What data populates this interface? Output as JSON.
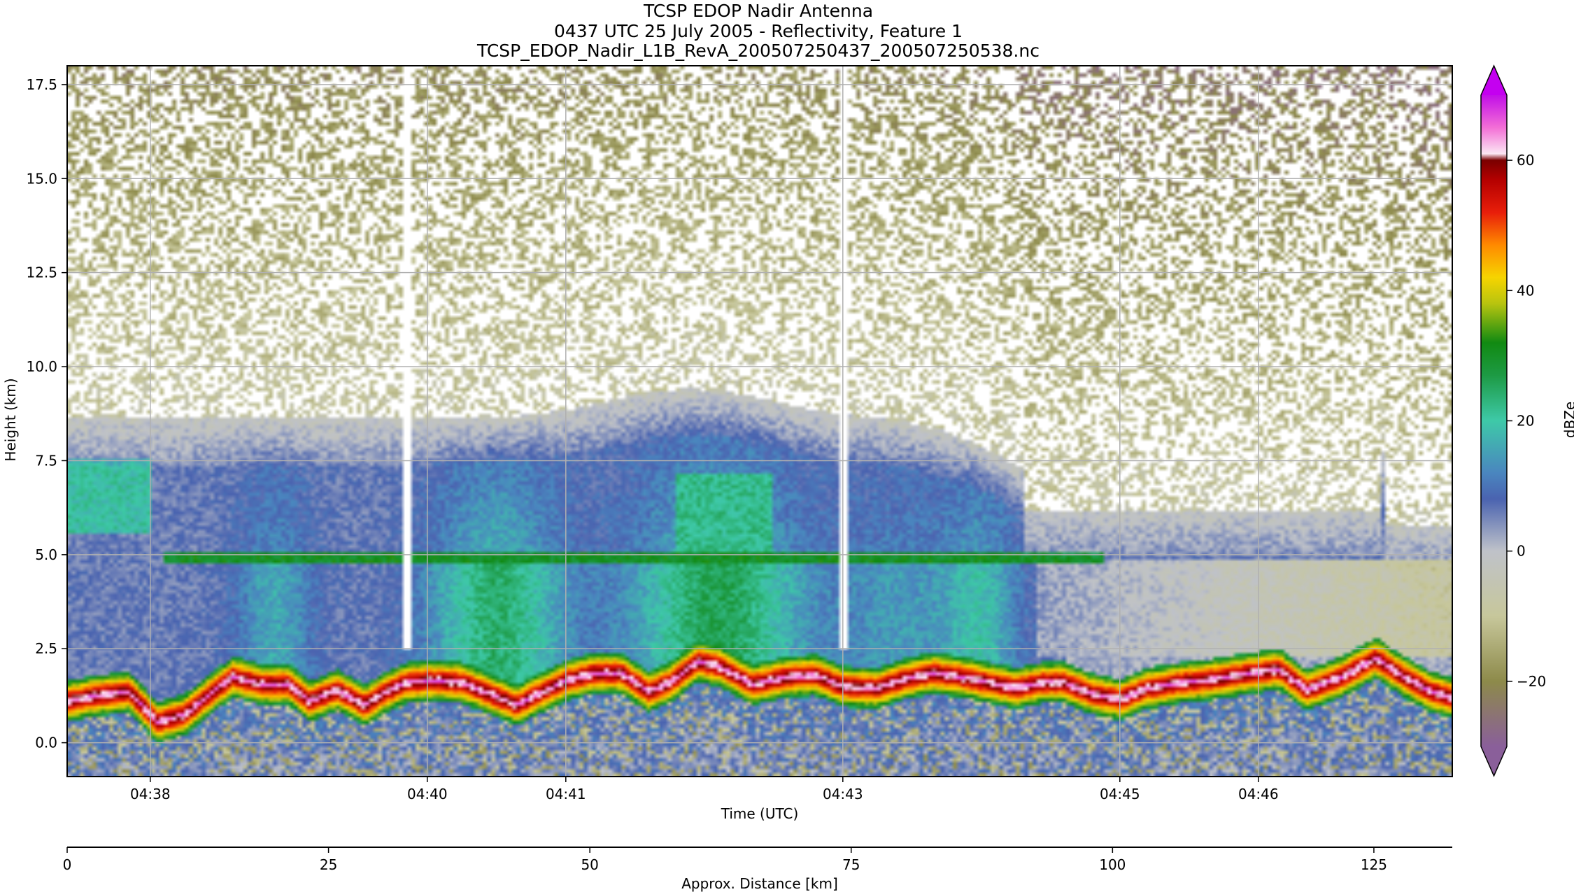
{
  "chart_data": {
    "type": "heatmap",
    "title": "TCSP EDOP Nadir Antenna",
    "subtitle": "0437 UTC 25 July 2005 - Reflectivity, Feature 1",
    "filename": "TCSP_EDOP_Nadir_L1B_RevA_200507250437_200507250538.nc",
    "xlabel": "Time (UTC)",
    "ylabel": "Height (km)",
    "x2label": "Approx. Distance [km]",
    "colorbar_label": "dBZe",
    "ylim": [
      -0.9,
      18.0
    ],
    "yticks": [
      0.0,
      2.5,
      5.0,
      7.5,
      10.0,
      12.5,
      15.0,
      17.5
    ],
    "ytick_labels": [
      "0.0",
      "2.5",
      "5.0",
      "7.5",
      "10.0",
      "12.5",
      "15.0",
      "17.5"
    ],
    "xlim_minutes": [
      37.4,
      47.4
    ],
    "xticks_minutes": [
      38,
      40,
      41,
      43,
      45,
      46
    ],
    "xtick_labels": [
      "04:38",
      "04:40",
      "04:41",
      "04:43",
      "04:45",
      "04:46"
    ],
    "x2lim_km": [
      0,
      132.5
    ],
    "x2ticks": [
      0,
      25,
      50,
      75,
      100,
      125
    ],
    "x2tick_labels": [
      "0",
      "25",
      "50",
      "75",
      "100",
      "125"
    ],
    "colorbar": {
      "range": [
        -30,
        70
      ],
      "ticks": [
        -20,
        0,
        20,
        40,
        60
      ],
      "tick_labels": [
        "−20",
        "0",
        "20",
        "40",
        "60"
      ],
      "extend": "both",
      "stops": [
        {
          "v": -30,
          "c": "#8a5f9a"
        },
        {
          "v": -20,
          "c": "#8d8a4a"
        },
        {
          "v": -10,
          "c": "#c7c79b"
        },
        {
          "v": 0,
          "c": "#bfc2c9"
        },
        {
          "v": 8,
          "c": "#4a63b0"
        },
        {
          "v": 12,
          "c": "#4a86bf"
        },
        {
          "v": 20,
          "c": "#3ec9a8"
        },
        {
          "v": 27,
          "c": "#1d9a44"
        },
        {
          "v": 32,
          "c": "#118a12"
        },
        {
          "v": 38,
          "c": "#b8c40f"
        },
        {
          "v": 42,
          "c": "#f6d400"
        },
        {
          "v": 47,
          "c": "#ff8a00"
        },
        {
          "v": 52,
          "c": "#e81e0a"
        },
        {
          "v": 57,
          "c": "#b40000"
        },
        {
          "v": 60,
          "c": "#7a0000"
        },
        {
          "v": 61,
          "c": "#fbe6f3"
        },
        {
          "v": 65,
          "c": "#f36fd6"
        },
        {
          "v": 70,
          "c": "#c20ee8"
        }
      ],
      "under_color": "#8a5f9a",
      "over_color": "#c400f0"
    },
    "features": {
      "melting_layer_km": 4.9,
      "surface_echo_km": [
        [
          37.4,
          1.1
        ],
        [
          37.6,
          1.25
        ],
        [
          37.85,
          1.35
        ],
        [
          38.05,
          0.55
        ],
        [
          38.25,
          0.75
        ],
        [
          38.45,
          1.35
        ],
        [
          38.6,
          1.75
        ],
        [
          38.8,
          1.55
        ],
        [
          39.0,
          1.55
        ],
        [
          39.15,
          1.1
        ],
        [
          39.35,
          1.4
        ],
        [
          39.55,
          1.0
        ],
        [
          39.7,
          1.35
        ],
        [
          39.85,
          1.6
        ],
        [
          40.05,
          1.65
        ],
        [
          40.25,
          1.6
        ],
        [
          40.45,
          1.3
        ],
        [
          40.65,
          1.0
        ],
        [
          40.8,
          1.3
        ],
        [
          41.0,
          1.65
        ],
        [
          41.2,
          1.85
        ],
        [
          41.4,
          1.85
        ],
        [
          41.6,
          1.35
        ],
        [
          41.75,
          1.6
        ],
        [
          41.95,
          2.15
        ],
        [
          42.1,
          2.05
        ],
        [
          42.35,
          1.55
        ],
        [
          42.6,
          1.75
        ],
        [
          42.8,
          1.8
        ],
        [
          43.0,
          1.5
        ],
        [
          43.25,
          1.45
        ],
        [
          43.45,
          1.7
        ],
        [
          43.65,
          1.85
        ],
        [
          43.85,
          1.75
        ],
        [
          44.05,
          1.6
        ],
        [
          44.25,
          1.45
        ],
        [
          44.45,
          1.6
        ],
        [
          44.6,
          1.6
        ],
        [
          44.8,
          1.3
        ],
        [
          45.0,
          1.15
        ],
        [
          45.2,
          1.45
        ],
        [
          45.45,
          1.6
        ],
        [
          45.7,
          1.7
        ],
        [
          45.95,
          1.85
        ],
        [
          46.15,
          1.95
        ],
        [
          46.35,
          1.4
        ],
        [
          46.6,
          1.75
        ],
        [
          46.85,
          2.25
        ],
        [
          47.05,
          1.75
        ],
        [
          47.25,
          1.35
        ],
        [
          47.4,
          1.2
        ]
      ],
      "vertical_gaps_minutes": [
        39.85,
        43.0
      ]
    }
  }
}
